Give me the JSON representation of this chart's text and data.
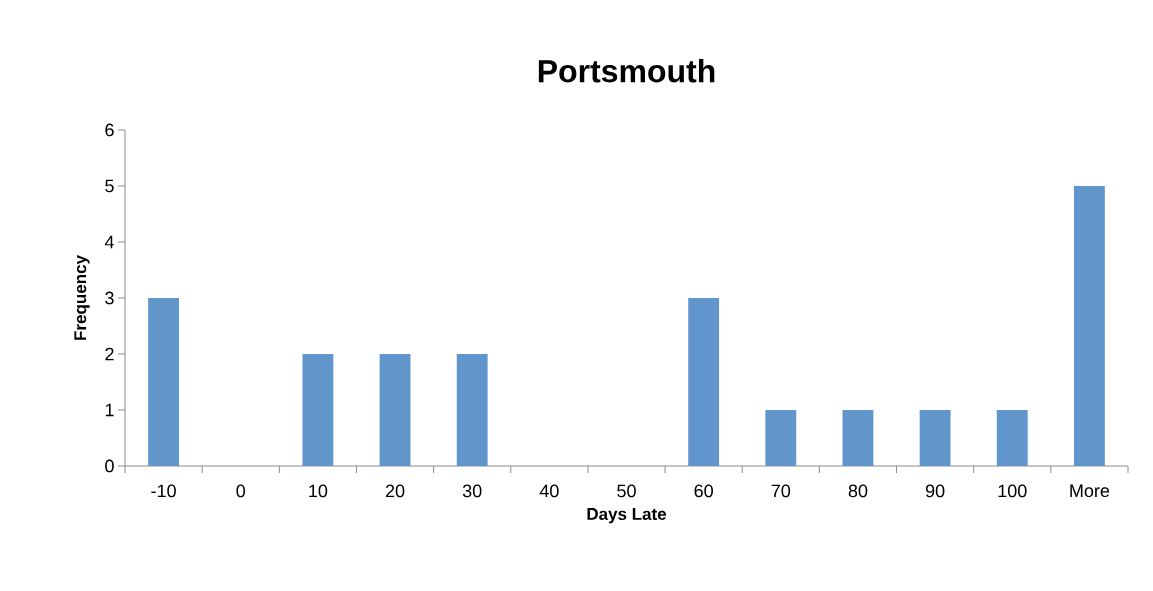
{
  "chart_data": {
    "type": "bar",
    "title": "Portsmouth",
    "xlabel": "Days Late",
    "ylabel": "Frequency",
    "categories": [
      "-10",
      "0",
      "10",
      "20",
      "30",
      "40",
      "50",
      "60",
      "70",
      "80",
      "90",
      "100",
      "More"
    ],
    "values": [
      3,
      0,
      2,
      2,
      2,
      0,
      0,
      3,
      1,
      1,
      1,
      1,
      5
    ],
    "color": "#6096cc",
    "ylim": [
      0,
      6
    ],
    "yticks": [
      0,
      1,
      2,
      3,
      4,
      5,
      6
    ]
  }
}
